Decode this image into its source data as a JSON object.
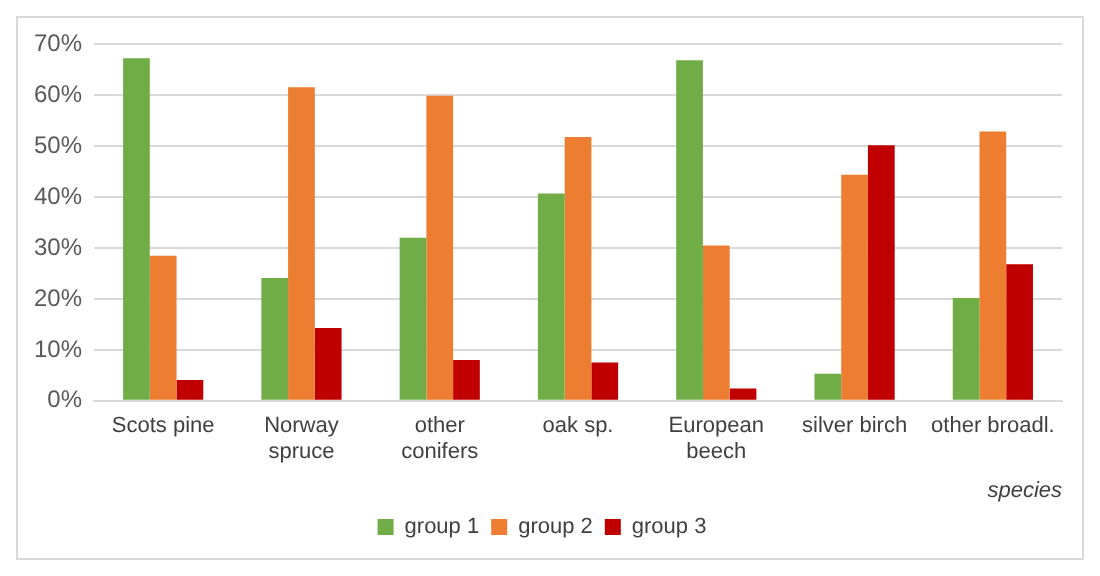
{
  "chart_data": {
    "type": "bar",
    "xlabel": "species",
    "categories": [
      "Scots pine",
      "Norway spruce",
      "other conifers",
      "oak sp.",
      "European beech",
      "silver birch",
      "other broadl."
    ],
    "series": [
      {
        "name": "group 1",
        "color": "#70ad47",
        "values": [
          67.3,
          24.1,
          32.0,
          40.7,
          66.9,
          5.3,
          20.2
        ]
      },
      {
        "name": "group 2",
        "color": "#ed7d31",
        "values": [
          28.5,
          61.6,
          59.9,
          51.8,
          30.5,
          44.4,
          52.9
        ]
      },
      {
        "name": "group 3",
        "color": "#c00000",
        "values": [
          4.1,
          14.3,
          8.0,
          7.5,
          2.4,
          50.2,
          26.8
        ]
      }
    ],
    "ylim": [
      0,
      70
    ],
    "yticks": [
      {
        "value": 0,
        "label": "0%"
      },
      {
        "value": 10,
        "label": "10%"
      },
      {
        "value": 20,
        "label": "20%"
      },
      {
        "value": 30,
        "label": "30%"
      },
      {
        "value": 40,
        "label": "40%"
      },
      {
        "value": 50,
        "label": "50%"
      },
      {
        "value": 60,
        "label": "60%"
      },
      {
        "value": 70,
        "label": "70%"
      }
    ],
    "grid": "y",
    "legend": "bottom"
  }
}
